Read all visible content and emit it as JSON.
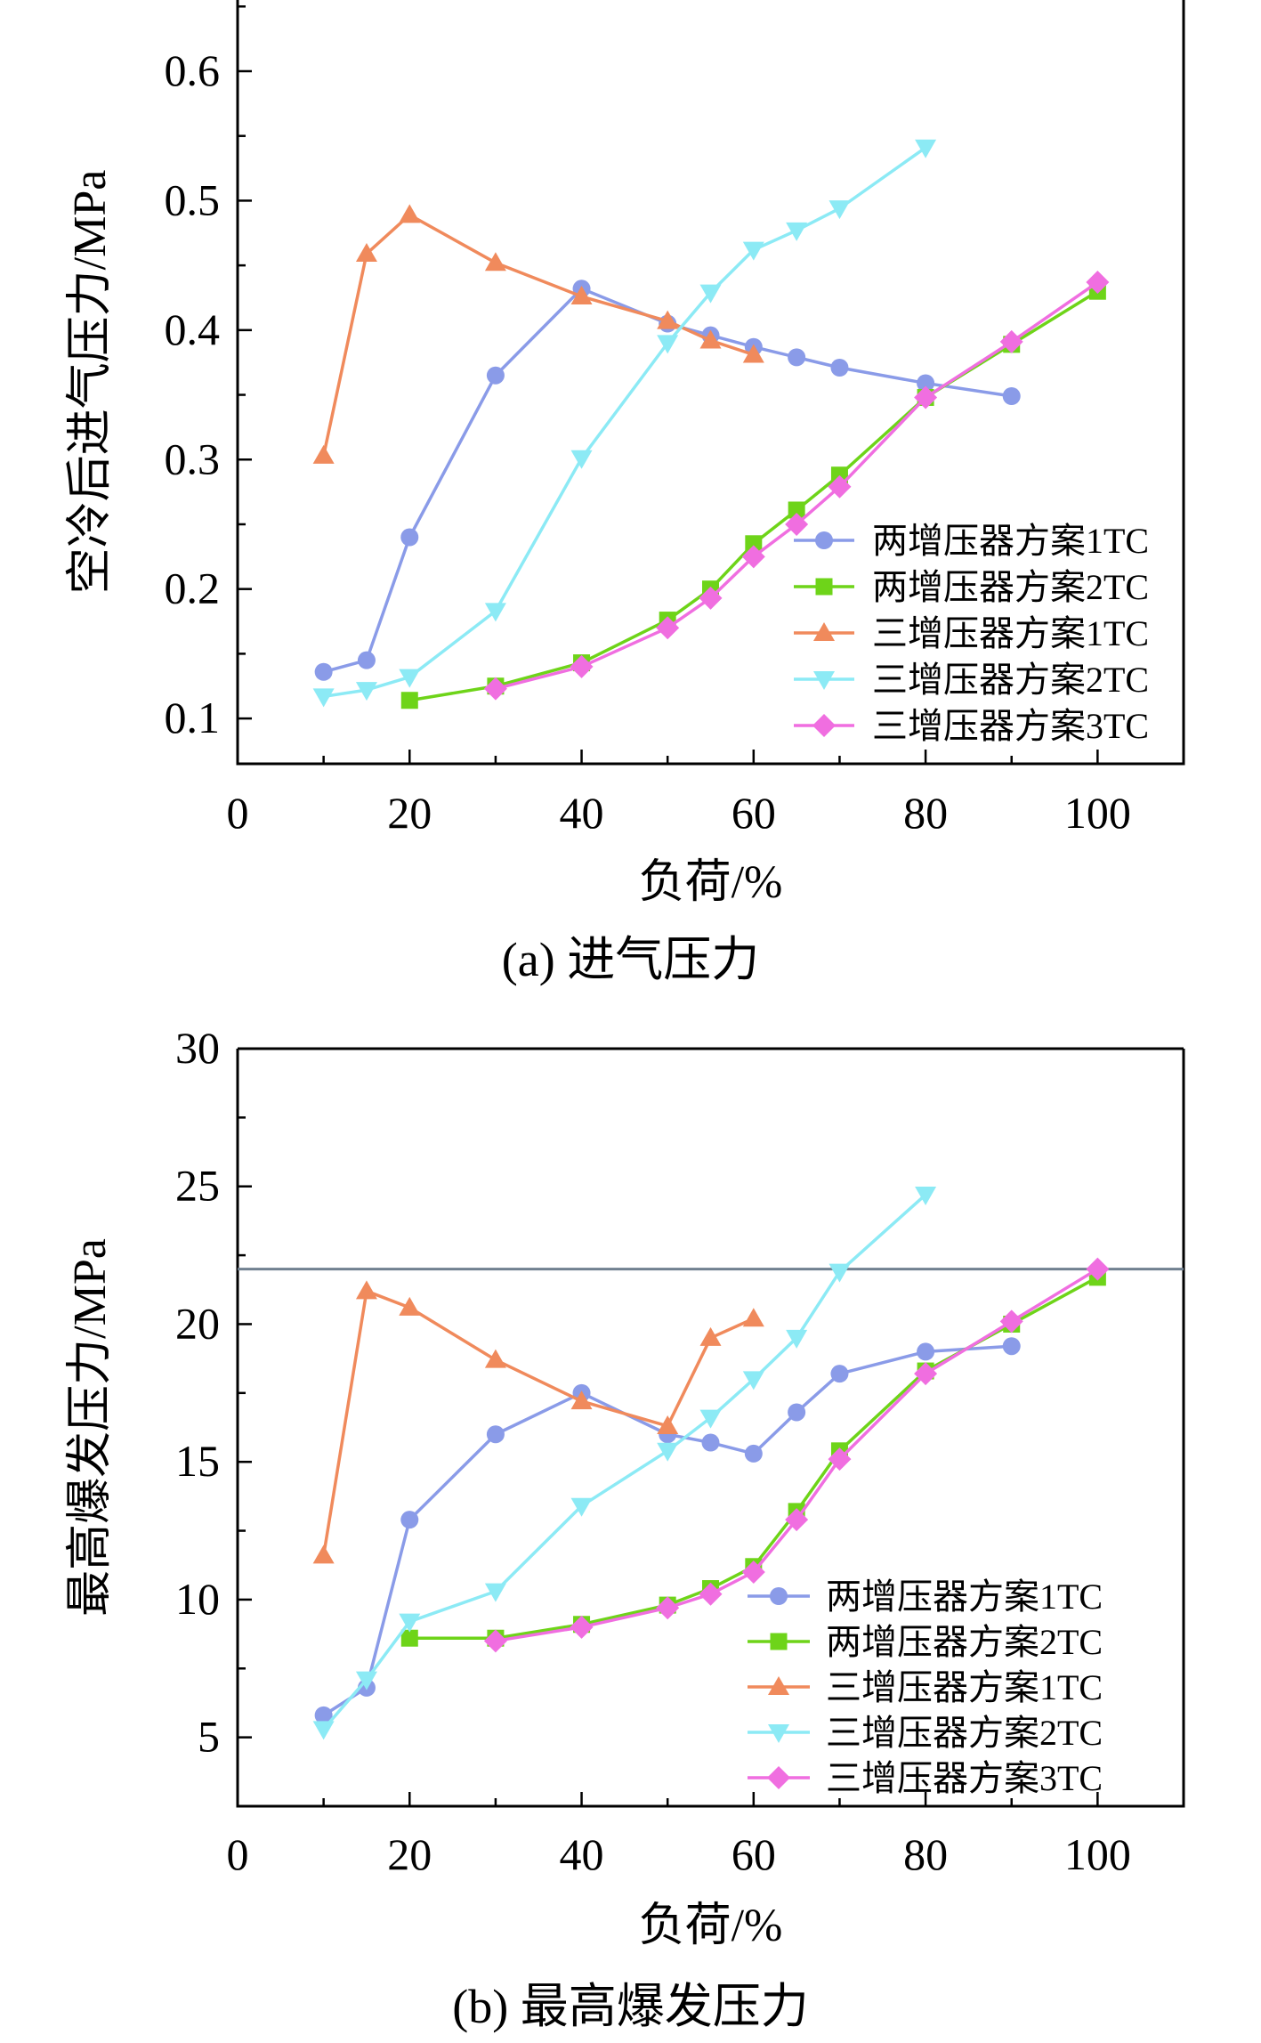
{
  "chart_data": [
    {
      "type": "line",
      "caption": "(a) 进气压力",
      "xlabel": "负荷/%",
      "ylabel": "空冷后进气压力/MPa",
      "xlim": [
        0,
        110
      ],
      "ylim": [
        0.065,
        0.655
      ],
      "xticks": [
        0,
        20,
        40,
        60,
        80,
        100
      ],
      "yticks": [
        0.1,
        0.2,
        0.3,
        0.4,
        0.5,
        0.6
      ],
      "ytick_labels": [
        "0.1",
        "0.2",
        "0.3",
        "0.4",
        "0.5",
        "0.6"
      ],
      "legend_position": "bottom-right",
      "series": [
        {
          "name": "两增压器方案1TC",
          "color": "#8a9be8",
          "marker": "circle",
          "x": [
            10,
            15,
            20,
            30,
            40,
            50,
            55,
            60,
            65,
            70,
            80,
            90
          ],
          "y": [
            0.136,
            0.145,
            0.24,
            0.365,
            0.432,
            0.405,
            0.396,
            0.387,
            0.379,
            0.371,
            0.359,
            0.349
          ]
        },
        {
          "name": "两增压器方案2TC",
          "color": "#6ed419",
          "marker": "square",
          "x": [
            20,
            30,
            40,
            50,
            55,
            60,
            65,
            70,
            80,
            90,
            100
          ],
          "y": [
            0.114,
            0.125,
            0.143,
            0.176,
            0.2,
            0.235,
            0.261,
            0.288,
            0.348,
            0.389,
            0.43
          ]
        },
        {
          "name": "三增压器方案1TC",
          "color": "#f08a5c",
          "marker": "triangle-up",
          "x": [
            10,
            15,
            20,
            30,
            40,
            50,
            55,
            60
          ],
          "y": [
            0.303,
            0.459,
            0.489,
            0.452,
            0.426,
            0.407,
            0.392,
            0.381
          ]
        },
        {
          "name": "三增压器方案2TC",
          "color": "#8ceaf5",
          "marker": "triangle-down",
          "x": [
            10,
            15,
            20,
            30,
            40,
            50,
            55,
            60,
            65,
            70,
            80
          ],
          "y": [
            0.117,
            0.122,
            0.132,
            0.183,
            0.301,
            0.39,
            0.429,
            0.462,
            0.477,
            0.494,
            0.541
          ]
        },
        {
          "name": "三增压器方案3TC",
          "color": "#f06ee0",
          "marker": "diamond",
          "x": [
            30,
            40,
            50,
            55,
            60,
            65,
            70,
            80,
            90,
            100
          ],
          "y": [
            0.123,
            0.14,
            0.17,
            0.193,
            0.225,
            0.25,
            0.279,
            0.348,
            0.391,
            0.437
          ]
        }
      ]
    },
    {
      "type": "line",
      "caption": "(b) 最高爆发压力",
      "xlabel": "负荷/%",
      "ylabel": "最高爆发压力/MPa",
      "xlim": [
        0,
        110
      ],
      "ylim": [
        2.5,
        30
      ],
      "xticks": [
        0,
        20,
        40,
        60,
        80,
        100
      ],
      "yticks": [
        5,
        10,
        15,
        20,
        25,
        30
      ],
      "ytick_labels": [
        "5",
        "10",
        "15",
        "20",
        "25",
        "30"
      ],
      "reference_line_y": 22,
      "reference_line_color": "#708090",
      "legend_position": "bottom-right",
      "series": [
        {
          "name": "两增压器方案1TC",
          "color": "#8a9be8",
          "marker": "circle",
          "x": [
            10,
            15,
            20,
            30,
            40,
            50,
            55,
            60,
            65,
            70,
            80,
            90
          ],
          "y": [
            5.8,
            6.8,
            12.9,
            16.0,
            17.5,
            16.0,
            15.7,
            15.3,
            16.8,
            18.2,
            19.0,
            19.2
          ]
        },
        {
          "name": "两增压器方案2TC",
          "color": "#6ed419",
          "marker": "square",
          "x": [
            20,
            30,
            40,
            50,
            55,
            60,
            65,
            70,
            80,
            90,
            100
          ],
          "y": [
            8.6,
            8.6,
            9.1,
            9.8,
            10.4,
            11.2,
            13.2,
            15.4,
            18.3,
            20.0,
            21.7
          ]
        },
        {
          "name": "三增压器方案1TC",
          "color": "#f08a5c",
          "marker": "triangle-up",
          "x": [
            10,
            15,
            20,
            30,
            40,
            50,
            55,
            60
          ],
          "y": [
            11.6,
            21.2,
            20.6,
            18.7,
            17.2,
            16.3,
            19.5,
            20.2
          ]
        },
        {
          "name": "三增压器方案2TC",
          "color": "#8ceaf5",
          "marker": "triangle-down",
          "x": [
            10,
            15,
            20,
            30,
            40,
            50,
            55,
            60,
            65,
            70,
            80
          ],
          "y": [
            5.3,
            7.1,
            9.2,
            10.3,
            13.4,
            15.4,
            16.6,
            18.0,
            19.5,
            21.9,
            24.7
          ]
        },
        {
          "name": "三增压器方案3TC",
          "color": "#f06ee0",
          "marker": "diamond",
          "x": [
            30,
            40,
            50,
            55,
            60,
            65,
            70,
            80,
            90,
            100
          ],
          "y": [
            8.5,
            9.0,
            9.7,
            10.2,
            11.0,
            12.9,
            15.1,
            18.2,
            20.1,
            22.0
          ]
        }
      ]
    }
  ]
}
